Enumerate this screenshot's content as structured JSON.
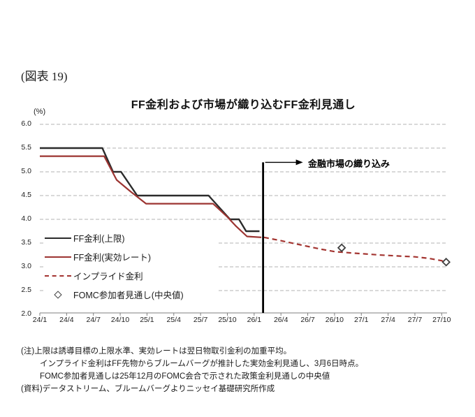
{
  "figure_label": "(図表 19)",
  "chart_data": {
    "type": "line",
    "title": "FF金利および市場が織り込むFF金利見通し",
    "unit_label": "(%)",
    "ylim": [
      2.0,
      6.0
    ],
    "x_domain_months": [
      0,
      45.6
    ],
    "grid": "horizontal-dashed",
    "legend_position": "inside-lower-left",
    "y_ticks": [
      "6.0",
      "5.5",
      "5.0",
      "4.5",
      "4.0",
      "3.5",
      "3.0",
      "2.5",
      "2.0"
    ],
    "x_ticks": [
      {
        "label": "24/1",
        "month": 0
      },
      {
        "label": "24/4",
        "month": 3
      },
      {
        "label": "24/7",
        "month": 6
      },
      {
        "label": "24/10",
        "month": 9
      },
      {
        "label": "25/1",
        "month": 12
      },
      {
        "label": "25/4",
        "month": 15
      },
      {
        "label": "25/7",
        "month": 18
      },
      {
        "label": "25/10",
        "month": 21
      },
      {
        "label": "26/1",
        "month": 24
      },
      {
        "label": "26/4",
        "month": 27
      },
      {
        "label": "26/7",
        "month": 30
      },
      {
        "label": "26/10",
        "month": 33
      },
      {
        "label": "27/1",
        "month": 36
      },
      {
        "label": "27/4",
        "month": 39
      },
      {
        "label": "27/7",
        "month": 42
      },
      {
        "label": "27/10",
        "month": 45
      }
    ],
    "series": [
      {
        "name": "FF金利(上限)",
        "type": "line",
        "style": "solid",
        "color": "#2b2b2b",
        "width": 2.4,
        "points": [
          [
            0,
            5.5
          ],
          [
            7.0,
            5.5
          ],
          [
            8.2,
            5.0
          ],
          [
            9.1,
            5.0
          ],
          [
            10.9,
            4.5
          ],
          [
            18.9,
            4.5
          ],
          [
            21.3,
            4.0
          ],
          [
            22.3,
            4.0
          ],
          [
            23.1,
            3.75
          ],
          [
            24.6,
            3.75
          ]
        ]
      },
      {
        "name": "FF金利(実効レート)",
        "type": "line",
        "style": "solid",
        "color": "#9c3431",
        "width": 2.2,
        "points": [
          [
            0,
            5.33
          ],
          [
            7.2,
            5.33
          ],
          [
            8.6,
            4.83
          ],
          [
            10.2,
            4.58
          ],
          [
            11.9,
            4.33
          ],
          [
            19.4,
            4.33
          ],
          [
            21.0,
            4.05
          ],
          [
            22.0,
            3.85
          ],
          [
            23.2,
            3.64
          ],
          [
            24.8,
            3.62
          ]
        ]
      },
      {
        "name": "インプライド金利",
        "type": "line",
        "style": "dashed",
        "color": "#a33430",
        "width": 2.2,
        "points": [
          [
            25.1,
            3.62
          ],
          [
            27,
            3.55
          ],
          [
            29.5,
            3.45
          ],
          [
            31.5,
            3.37
          ],
          [
            33,
            3.32
          ],
          [
            35,
            3.29
          ],
          [
            36.5,
            3.27
          ],
          [
            38,
            3.25
          ],
          [
            40,
            3.23
          ],
          [
            42,
            3.21
          ],
          [
            43.5,
            3.18
          ],
          [
            45,
            3.13
          ],
          [
            45.6,
            3.08
          ]
        ]
      },
      {
        "name": "FOMC参加者見通し(中央値)",
        "type": "scatter",
        "marker": "open-diamond",
        "color": "#3f3f3f",
        "points": [
          [
            33.8,
            3.4
          ],
          [
            45.5,
            3.1
          ]
        ]
      }
    ],
    "event_line": {
      "month": 25.0,
      "top_value": 5.2,
      "label": "金融市場の織り込み",
      "color": "#000000"
    },
    "colors": {
      "grid": "#b3b3b3",
      "axis": "#7f7f7f",
      "upper_line": "#2b2b2b",
      "effective_line": "#9c3431",
      "implied_line": "#a33430",
      "marker_outline": "#3f3f3f"
    }
  },
  "notes": [
    "(注)上限は誘導目標の上限水準、実効レートは翌日物取引金利の加重平均。",
    "インプライド金利はFF先物からブルームバーグが推計した実効金利見通し、3月6日時点。",
    "FOMC参加者見通しは25年12月のFOMC会合で示された政策金利見通しの中央値",
    "(資料)データストリーム、ブルームバーグよりニッセイ基礎研究所作成"
  ]
}
